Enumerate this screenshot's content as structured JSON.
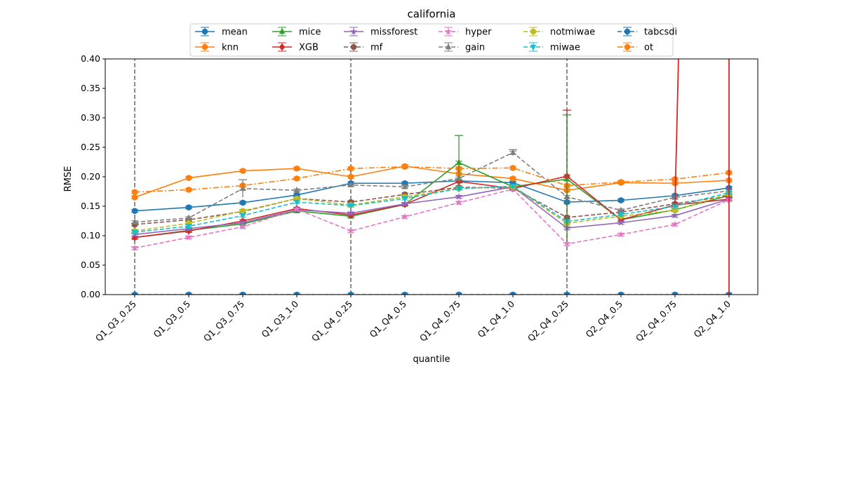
{
  "chart_data": {
    "type": "line",
    "title": "california",
    "xlabel": "quantile",
    "ylabel": "RMSE",
    "ylim": [
      0,
      0.4
    ],
    "yticks": [
      "0.00",
      "0.05",
      "0.10",
      "0.15",
      "0.20",
      "0.25",
      "0.30",
      "0.35",
      "0.40"
    ],
    "categories": [
      "Q1_Q3_0.25",
      "Q1_Q3_0.5",
      "Q1_Q3_0.75",
      "Q1_Q3_1.0",
      "Q1_Q4_0.25",
      "Q1_Q4_0.5",
      "Q1_Q4_0.75",
      "Q1_Q4_1.0",
      "Q2_Q4_0.25",
      "Q2_Q4_0.5",
      "Q2_Q4_0.75",
      "Q2_Q4_1.0"
    ],
    "legend_position": "top-center",
    "series": [
      {
        "name": "mean",
        "color": "#1f77b4",
        "dash": "solid",
        "marker": "circle",
        "values": [
          0.142,
          0.148,
          0.156,
          0.169,
          0.189,
          0.189,
          0.193,
          0.19,
          0.157,
          0.16,
          0.168,
          0.181
        ]
      },
      {
        "name": "knn",
        "color": "#ff7f0e",
        "dash": "solid",
        "marker": "circle",
        "values": [
          0.165,
          0.198,
          0.21,
          0.214,
          0.2,
          0.218,
          0.205,
          0.197,
          0.177,
          0.19,
          0.189,
          0.194
        ]
      },
      {
        "name": "mice",
        "color": "#2ca02c",
        "dash": "solid",
        "marker": "triangle",
        "values": [
          0.097,
          0.109,
          0.12,
          0.142,
          0.133,
          0.153,
          0.224,
          0.183,
          0.196,
          0.127,
          0.144,
          0.168
        ]
      },
      {
        "name": "XGB",
        "color": "#d62728",
        "dash": "solid",
        "marker": "diamond",
        "values": [
          0.097,
          0.108,
          0.125,
          0.146,
          0.135,
          0.153,
          0.192,
          0.18,
          0.201,
          0.127,
          0.152,
          0.162
        ]
      },
      {
        "name": "missforest",
        "color": "#9467bd",
        "dash": "solid",
        "marker": "star",
        "values": [
          0.102,
          0.112,
          0.122,
          0.144,
          0.138,
          0.154,
          0.166,
          0.183,
          0.113,
          0.122,
          0.134,
          0.162
        ]
      },
      {
        "name": "mf",
        "color": "#8c564b",
        "dash": "dashed",
        "marker": "circle",
        "values": [
          0.119,
          0.127,
          0.141,
          0.163,
          0.157,
          0.17,
          0.182,
          0.181,
          0.131,
          0.14,
          0.154,
          0.168
        ]
      },
      {
        "name": "hyper",
        "color": "#e377c2",
        "dash": "dashed",
        "marker": "star",
        "values": [
          0.079,
          0.097,
          0.115,
          0.145,
          0.108,
          0.132,
          0.156,
          0.179,
          0.086,
          0.102,
          0.119,
          0.161
        ]
      },
      {
        "name": "gain",
        "color": "#7f7f7f",
        "dash": "dashed",
        "marker": "triangle",
        "values": [
          0.123,
          0.13,
          0.18,
          0.177,
          0.186,
          0.183,
          0.197,
          0.241,
          0.166,
          0.143,
          0.165,
          0.176
        ]
      },
      {
        "name": "notmiwae",
        "color": "#bcbd22",
        "dash": "dashed",
        "marker": "circle",
        "values": [
          0.108,
          0.121,
          0.142,
          0.163,
          0.152,
          0.166,
          0.18,
          0.183,
          0.121,
          0.133,
          0.143,
          0.171
        ]
      },
      {
        "name": "miwae",
        "color": "#17becf",
        "dash": "dashed",
        "marker": "tri_down",
        "values": [
          0.106,
          0.116,
          0.134,
          0.157,
          0.151,
          0.163,
          0.18,
          0.184,
          0.124,
          0.136,
          0.15,
          0.173
        ]
      },
      {
        "name": "tabcsdi",
        "color": "#1f77b4",
        "dash": "dashed",
        "marker": "circle",
        "values": [
          0.0,
          0.0,
          0.0,
          0.0,
          0.0,
          0.0,
          0.0,
          0.0,
          0.0,
          0.0,
          0.0,
          0.0
        ]
      },
      {
        "name": "ot",
        "color": "#ff7f0e",
        "dash": "dashdot",
        "marker": "circle",
        "values": [
          0.174,
          0.178,
          0.185,
          0.197,
          0.214,
          0.217,
          0.214,
          0.215,
          0.185,
          0.191,
          0.196,
          0.207
        ]
      }
    ],
    "annotations": [
      {
        "kind": "vline",
        "series": "gain",
        "category": "Q1_Q3_0.25",
        "y0": 0.0,
        "y1": 0.4
      },
      {
        "kind": "vline",
        "series": "gain",
        "category": "Q1_Q4_0.25",
        "y0": 0.0,
        "y1": 0.4
      },
      {
        "kind": "vline",
        "series": "gain",
        "category": "Q2_Q4_0.25",
        "y0": 0.0,
        "y1": 0.4
      },
      {
        "kind": "errorbar",
        "series": "mice",
        "category": "Q1_Q4_0.75",
        "low": 0.178,
        "high": 0.27
      },
      {
        "kind": "errorbar",
        "series": "XGB",
        "category": "Q2_Q4_0.25",
        "low": 0.09,
        "high": 0.313
      },
      {
        "kind": "errorbar",
        "series": "mice",
        "category": "Q2_Q4_0.25",
        "low": 0.09,
        "high": 0.305
      },
      {
        "kind": "errorbar",
        "series": "gain",
        "category": "Q1_Q3_0.75",
        "low": 0.165,
        "high": 0.195
      },
      {
        "kind": "errorbar",
        "series": "gain",
        "category": "Q1_Q4_1.0",
        "low": 0.236,
        "high": 0.246
      },
      {
        "kind": "spike",
        "series": "XGB",
        "category": "Q2_Q4_1.0",
        "low": 0.0,
        "high": 0.4
      },
      {
        "kind": "spike_line",
        "series": "XGB",
        "from_category": "Q2_Q4_0.75",
        "to_category": "Q2_Q4_1.0",
        "from_y": 0.152,
        "to_y": 0.4
      }
    ]
  }
}
